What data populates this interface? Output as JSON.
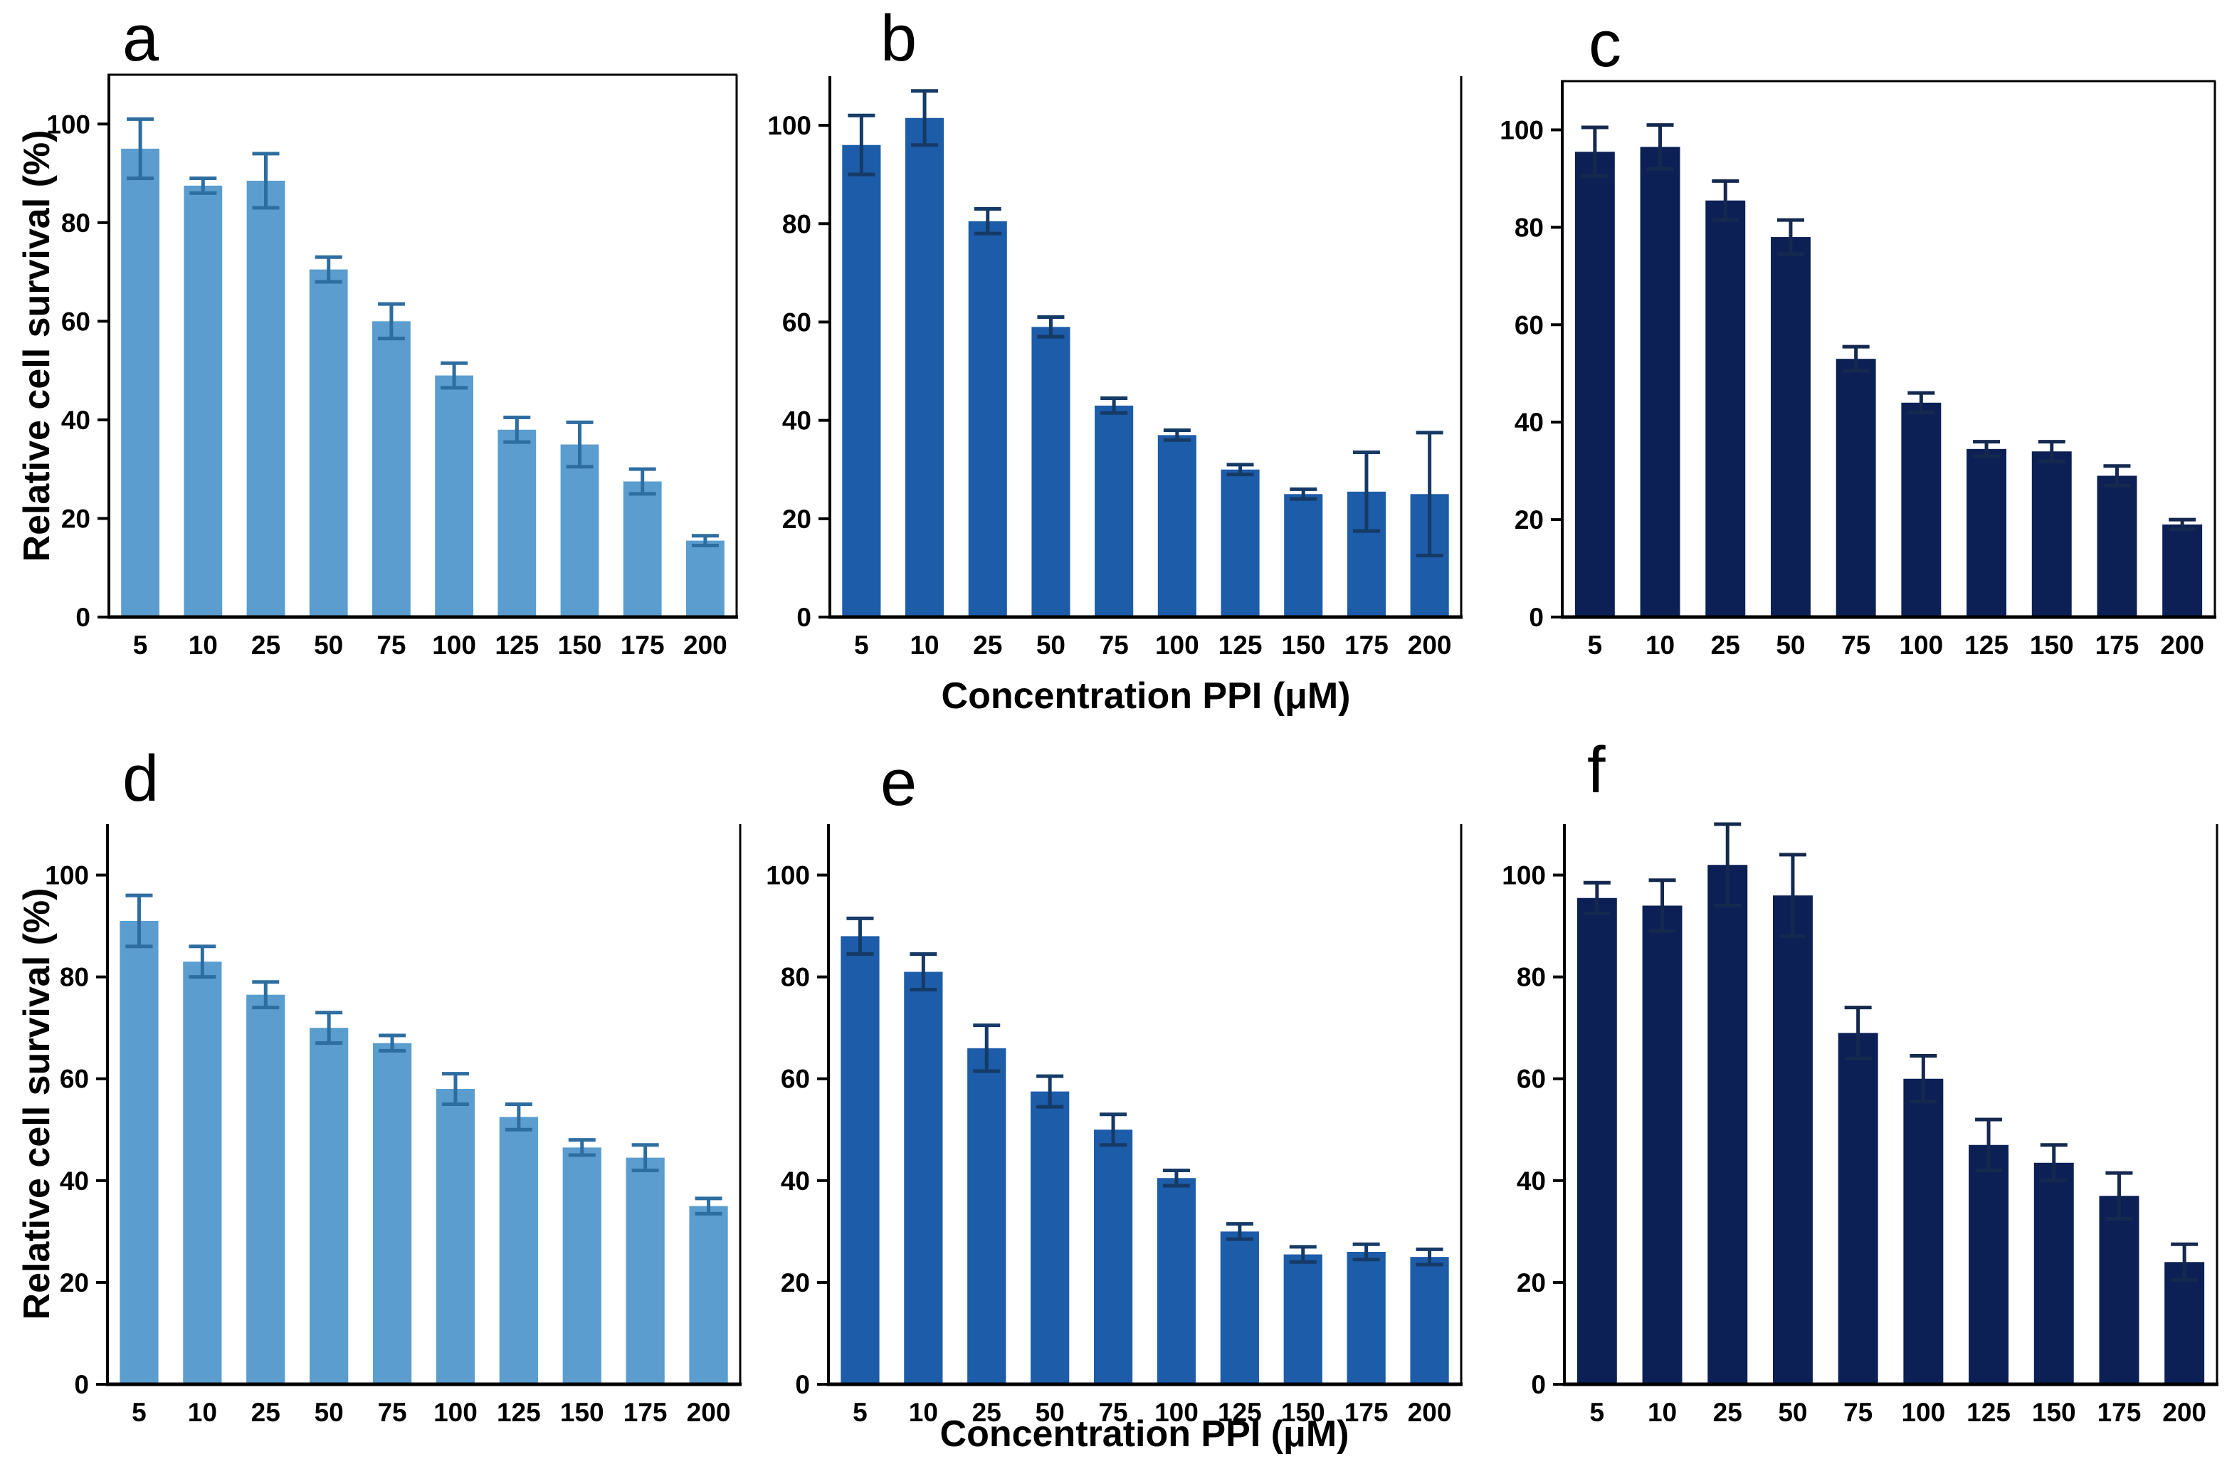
{
  "figure": {
    "y_axis_label": "Relative cell survival (%)",
    "x_axis_label": "Concentration PPI (μM)"
  },
  "chart_data": [
    {
      "type": "bar",
      "letter": "a",
      "categories": [
        "5",
        "10",
        "25",
        "50",
        "75",
        "100",
        "125",
        "150",
        "175",
        "200"
      ],
      "values": [
        95,
        87.5,
        88.5,
        70.5,
        60,
        49,
        38,
        35,
        27.5,
        15.5
      ],
      "errors": [
        6,
        1.5,
        5.5,
        2.5,
        3.5,
        2.5,
        2.5,
        4.5,
        2.5,
        1
      ],
      "bar_color": "#5B9DCE",
      "error_color": "#2E6DA0",
      "ylabel": "Relative cell survival (%)",
      "xlabel": "",
      "ylim": [
        0,
        110
      ],
      "yticks": [
        0,
        20,
        40,
        60,
        80,
        100
      ],
      "grid": false
    },
    {
      "type": "bar",
      "letter": "b",
      "categories": [
        "5",
        "10",
        "25",
        "50",
        "75",
        "100",
        "125",
        "150",
        "175",
        "200"
      ],
      "values": [
        96,
        101.5,
        80.5,
        59,
        43,
        37,
        30,
        25,
        25.5,
        25
      ],
      "errors": [
        6,
        5.5,
        2.5,
        2,
        1.5,
        1,
        1,
        1,
        8,
        12.5
      ],
      "bar_color": "#1C5CA8",
      "error_color": "#163A66",
      "ylabel": "",
      "xlabel": "Concentration PPI (μM)",
      "ylim": [
        0,
        110
      ],
      "yticks": [
        0,
        20,
        40,
        60,
        80,
        100
      ],
      "grid": false
    },
    {
      "type": "bar",
      "letter": "c",
      "categories": [
        "5",
        "10",
        "25",
        "50",
        "75",
        "100",
        "125",
        "150",
        "175",
        "200"
      ],
      "values": [
        95.5,
        96.5,
        85.5,
        78,
        53,
        44,
        34.5,
        34,
        29,
        19
      ],
      "errors": [
        5,
        4.5,
        4,
        3.5,
        2.5,
        2,
        1.5,
        2,
        2,
        1
      ],
      "bar_color": "#0C2056",
      "error_color": "#15294F",
      "ylabel": "",
      "xlabel": "",
      "ylim": [
        0,
        110
      ],
      "yticks": [
        0,
        20,
        40,
        60,
        80,
        100
      ],
      "grid": false
    },
    {
      "type": "bar",
      "letter": "d",
      "categories": [
        "5",
        "10",
        "25",
        "50",
        "75",
        "100",
        "125",
        "150",
        "175",
        "200"
      ],
      "values": [
        91,
        83,
        76.5,
        70,
        67,
        58,
        52.5,
        46.5,
        44.5,
        35
      ],
      "errors": [
        5,
        3,
        2.5,
        3,
        1.5,
        3,
        2.5,
        1.5,
        2.5,
        1.5
      ],
      "bar_color": "#5B9DCE",
      "error_color": "#2E6DA0",
      "ylabel": "Relative cell survival (%)",
      "xlabel": "",
      "ylim": [
        0,
        110
      ],
      "yticks": [
        0,
        20,
        40,
        60,
        80,
        100
      ],
      "grid": false
    },
    {
      "type": "bar",
      "letter": "e",
      "categories": [
        "5",
        "10",
        "25",
        "50",
        "75",
        "100",
        "125",
        "150",
        "175",
        "200"
      ],
      "values": [
        88,
        81,
        66,
        57.5,
        50,
        40.5,
        30,
        25.5,
        26,
        25
      ],
      "errors": [
        3.5,
        3.5,
        4.5,
        3,
        3,
        1.5,
        1.5,
        1.5,
        1.5,
        1.5
      ],
      "bar_color": "#1C5CA8",
      "error_color": "#163A66",
      "ylabel": "",
      "xlabel": "Concentration PPI (μM)",
      "ylim": [
        0,
        110
      ],
      "yticks": [
        0,
        20,
        40,
        60,
        80,
        100
      ],
      "grid": false
    },
    {
      "type": "bar",
      "letter": "f",
      "categories": [
        "5",
        "10",
        "25",
        "50",
        "75",
        "100",
        "125",
        "150",
        "175",
        "200"
      ],
      "values": [
        95.5,
        94,
        102,
        96,
        69,
        60,
        47,
        43.5,
        37,
        24
      ],
      "errors": [
        3,
        5,
        8,
        8,
        5,
        4.5,
        5,
        3.5,
        4.5,
        3.5
      ],
      "bar_color": "#0C2056",
      "error_color": "#15294F",
      "ylabel": "",
      "xlabel": "",
      "ylim": [
        0,
        110
      ],
      "yticks": [
        0,
        20,
        40,
        60,
        80,
        100
      ],
      "grid": false
    }
  ]
}
